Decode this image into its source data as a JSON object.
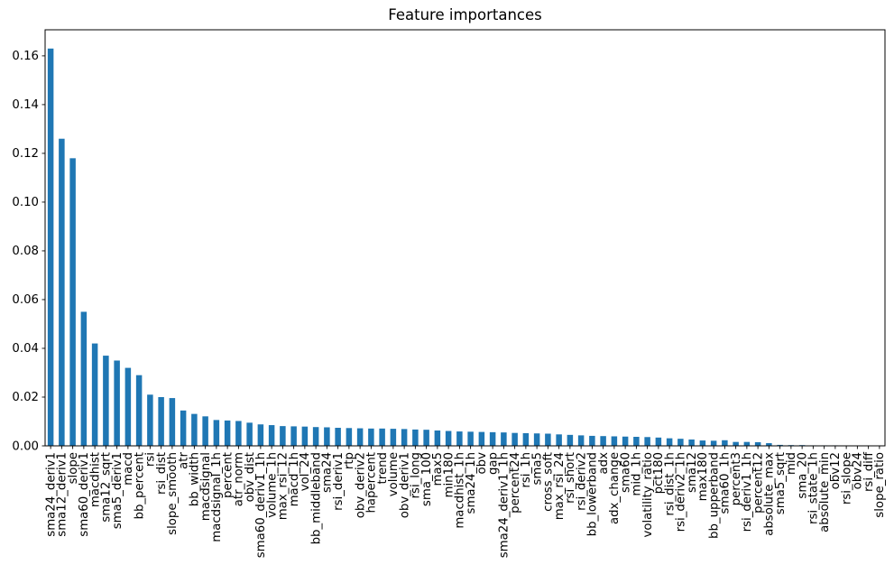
{
  "chart_data": {
    "type": "bar",
    "title": "Feature importances",
    "xlabel": "",
    "ylabel": "",
    "legend": "none",
    "grid": false,
    "bar_color": "#1f77b4",
    "ylim": [
      0,
      0.1707
    ],
    "yticks": [
      0.0,
      0.02,
      0.04,
      0.06,
      0.08,
      0.1,
      0.12,
      0.14,
      0.16
    ],
    "ytick_label_format": "0.00",
    "xtick_rotation_degrees": 90,
    "categories": [
      "sma24_deriv1",
      "sma12_deriv1",
      "slope",
      "sma60_deriv1",
      "macdhist",
      "sma12_sqrt",
      "sma5_deriv1",
      "macd",
      "bb_percent",
      "rsi",
      "rsi_dist",
      "slope_smooth",
      "atr",
      "bb_width",
      "macdsignal",
      "macdsignal_1h",
      "percent",
      "atr_norm",
      "obv_dist",
      "sma60_deriv1_1h",
      "volume_1h",
      "max_rsi_12",
      "macd_1h",
      "vol_24",
      "bb_middleband",
      "sma24",
      "rsi_deriv1",
      "rtp",
      "obv_deriv2",
      "hapercent",
      "trend",
      "volume",
      "obv_deriv1",
      "rsi_long",
      "sma_100",
      "max5",
      "min180",
      "macdhist_1h",
      "sma24_1h",
      "obv",
      "gap",
      "sma24_deriv1_1h",
      "percent24",
      "rsi_1h",
      "sma5",
      "cross_soft",
      "max_rsi_24",
      "rsi_short",
      "rsi_deriv2",
      "bb_lowerband",
      "adx",
      "adx_change",
      "sma60",
      "mid_1h",
      "volatility_ratio",
      "pct180",
      "rsi_dist_1h",
      "rsi_deriv2_1h",
      "sma12",
      "max180",
      "bb_upperband",
      "sma60_1h",
      "percent3",
      "rsi_deriv1_1h",
      "percent12",
      "absolute_max",
      "sma5_sqrt",
      "mid",
      "sma_20",
      "rsi_state_1h",
      "absolute_min",
      "obv12",
      "rsi_slope",
      "obv24",
      "rsi_diff",
      "slope_ratio"
    ],
    "values": [
      0.163,
      0.126,
      0.118,
      0.055,
      0.042,
      0.037,
      0.035,
      0.032,
      0.029,
      0.021,
      0.02,
      0.0196,
      0.0145,
      0.0131,
      0.0121,
      0.0106,
      0.0104,
      0.0102,
      0.0095,
      0.0088,
      0.0085,
      0.0081,
      0.008,
      0.0079,
      0.0077,
      0.0076,
      0.0074,
      0.0073,
      0.0072,
      0.0071,
      0.0071,
      0.007,
      0.0069,
      0.0067,
      0.0066,
      0.0063,
      0.0061,
      0.0059,
      0.0058,
      0.0057,
      0.0056,
      0.0055,
      0.0053,
      0.0052,
      0.0051,
      0.005,
      0.0047,
      0.0045,
      0.0043,
      0.0041,
      0.004,
      0.0039,
      0.0038,
      0.0037,
      0.0036,
      0.0034,
      0.0031,
      0.0029,
      0.0026,
      0.0022,
      0.0021,
      0.0023,
      0.0016,
      0.0016,
      0.0015,
      0.0011,
      0.0004,
      0.0003,
      0.0003,
      0.0002,
      0.0002,
      0.0002,
      0.0001,
      0.0001,
      0.0001,
      0.0001
    ]
  }
}
